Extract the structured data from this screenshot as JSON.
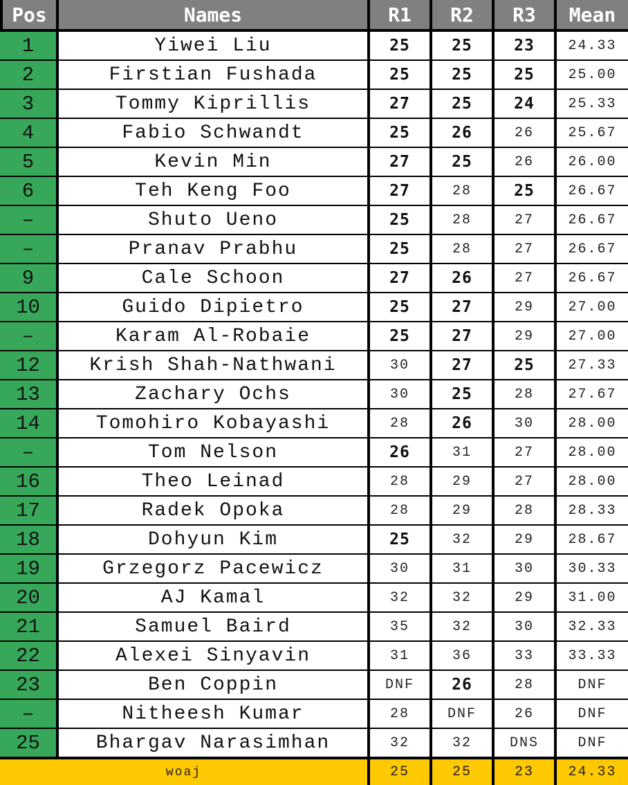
{
  "headers": {
    "pos": "Pos",
    "names": "Names",
    "r1": "R1",
    "r2": "R2",
    "r3": "R3",
    "mean": "Mean"
  },
  "tier_colors": {
    "gold": "#ffc900",
    "orange": "#e85303",
    "grey": "#b7b7b7",
    "pos_green": "#37a85a",
    "header_grey": "#808080"
  },
  "rows": [
    {
      "pos": "1",
      "name": "Yiwei Liu",
      "r1": "25",
      "r1_tier": "gold",
      "r2": "25",
      "r2_tier": "gold",
      "r3": "23",
      "r3_tier": "gold",
      "mean": "24.33",
      "mean_tier": ""
    },
    {
      "pos": "2",
      "name": "Firstian Fushada",
      "r1": "25",
      "r1_tier": "gold",
      "r2": "25",
      "r2_tier": "gold",
      "r3": "25",
      "r3_tier": "orange",
      "mean": "25.00",
      "mean_tier": ""
    },
    {
      "pos": "3",
      "name": "Tommy Kiprillis",
      "r1": "27",
      "r1_tier": "orange",
      "r2": "25",
      "r2_tier": "gold",
      "r3": "24",
      "r3_tier": "grey",
      "mean": "25.33",
      "mean_tier": ""
    },
    {
      "pos": "4",
      "name": "Fabio Schwandt",
      "r1": "25",
      "r1_tier": "gold",
      "r2": "26",
      "r2_tier": "grey",
      "r3": "26",
      "r3_tier": "",
      "mean": "25.67",
      "mean_tier": ""
    },
    {
      "pos": "5",
      "name": "Kevin Min",
      "r1": "27",
      "r1_tier": "orange",
      "r2": "25",
      "r2_tier": "gold",
      "r3": "26",
      "r3_tier": "",
      "mean": "26.00",
      "mean_tier": ""
    },
    {
      "pos": "6",
      "name": "Teh Keng Foo",
      "r1": "27",
      "r1_tier": "orange",
      "r2": "28",
      "r2_tier": "",
      "r3": "25",
      "r3_tier": "orange",
      "mean": "26.67",
      "mean_tier": ""
    },
    {
      "pos": "–",
      "name": "Shuto Ueno",
      "r1": "25",
      "r1_tier": "gold",
      "r2": "28",
      "r2_tier": "",
      "r3": "27",
      "r3_tier": "",
      "mean": "26.67",
      "mean_tier": ""
    },
    {
      "pos": "–",
      "name": "Pranav Prabhu",
      "r1": "25",
      "r1_tier": "gold",
      "r2": "28",
      "r2_tier": "",
      "r3": "27",
      "r3_tier": "",
      "mean": "26.67",
      "mean_tier": ""
    },
    {
      "pos": "9",
      "name": "Cale Schoon",
      "r1": "27",
      "r1_tier": "orange",
      "r2": "26",
      "r2_tier": "grey",
      "r3": "27",
      "r3_tier": "",
      "mean": "26.67",
      "mean_tier": ""
    },
    {
      "pos": "10",
      "name": "Guido Dipietro",
      "r1": "25",
      "r1_tier": "gold",
      "r2": "27",
      "r2_tier": "orange",
      "r3": "29",
      "r3_tier": "",
      "mean": "27.00",
      "mean_tier": ""
    },
    {
      "pos": "–",
      "name": "Karam Al-Robaie",
      "r1": "25",
      "r1_tier": "gold",
      "r2": "27",
      "r2_tier": "orange",
      "r3": "29",
      "r3_tier": "",
      "mean": "27.00",
      "mean_tier": ""
    },
    {
      "pos": "12",
      "name": "Krish Shah-Nathwani",
      "r1": "30",
      "r1_tier": "",
      "r2": "27",
      "r2_tier": "orange",
      "r3": "25",
      "r3_tier": "orange",
      "mean": "27.33",
      "mean_tier": ""
    },
    {
      "pos": "13",
      "name": "Zachary Ochs",
      "r1": "30",
      "r1_tier": "",
      "r2": "25",
      "r2_tier": "gold",
      "r3": "28",
      "r3_tier": "",
      "mean": "27.67",
      "mean_tier": ""
    },
    {
      "pos": "14",
      "name": "Tomohiro Kobayashi",
      "r1": "28",
      "r1_tier": "",
      "r2": "26",
      "r2_tier": "grey",
      "r3": "30",
      "r3_tier": "",
      "mean": "28.00",
      "mean_tier": ""
    },
    {
      "pos": "–",
      "name": "Tom Nelson",
      "r1": "26",
      "r1_tier": "grey",
      "r2": "31",
      "r2_tier": "",
      "r3": "27",
      "r3_tier": "",
      "mean": "28.00",
      "mean_tier": ""
    },
    {
      "pos": "16",
      "name": "Theo Leinad",
      "r1": "28",
      "r1_tier": "",
      "r2": "29",
      "r2_tier": "",
      "r3": "27",
      "r3_tier": "",
      "mean": "28.00",
      "mean_tier": ""
    },
    {
      "pos": "17",
      "name": "Radek Opoka",
      "r1": "28",
      "r1_tier": "",
      "r2": "29",
      "r2_tier": "",
      "r3": "28",
      "r3_tier": "",
      "mean": "28.33",
      "mean_tier": ""
    },
    {
      "pos": "18",
      "name": "Dohyun Kim",
      "r1": "25",
      "r1_tier": "gold",
      "r2": "32",
      "r2_tier": "",
      "r3": "29",
      "r3_tier": "",
      "mean": "28.67",
      "mean_tier": ""
    },
    {
      "pos": "19",
      "name": "Grzegorz Pacewicz",
      "r1": "30",
      "r1_tier": "",
      "r2": "31",
      "r2_tier": "",
      "r3": "30",
      "r3_tier": "",
      "mean": "30.33",
      "mean_tier": ""
    },
    {
      "pos": "20",
      "name": "AJ Kamal",
      "r1": "32",
      "r1_tier": "",
      "r2": "32",
      "r2_tier": "",
      "r3": "29",
      "r3_tier": "",
      "mean": "31.00",
      "mean_tier": ""
    },
    {
      "pos": "21",
      "name": "Samuel Baird",
      "r1": "35",
      "r1_tier": "",
      "r2": "32",
      "r2_tier": "",
      "r3": "30",
      "r3_tier": "",
      "mean": "32.33",
      "mean_tier": ""
    },
    {
      "pos": "22",
      "name": "Alexei Sinyavin",
      "r1": "31",
      "r1_tier": "",
      "r2": "36",
      "r2_tier": "",
      "r3": "33",
      "r3_tier": "",
      "mean": "33.33",
      "mean_tier": ""
    },
    {
      "pos": "23",
      "name": "Ben Coppin",
      "r1": "DNF",
      "r1_tier": "dnf",
      "r2": "26",
      "r2_tier": "grey",
      "r3": "28",
      "r3_tier": "",
      "mean": "DNF",
      "mean_tier": "dnf"
    },
    {
      "pos": "–",
      "name": "Nitheesh Kumar",
      "r1": "28",
      "r1_tier": "",
      "r2": "DNF",
      "r2_tier": "dnf",
      "r3": "26",
      "r3_tier": "",
      "mean": "DNF",
      "mean_tier": "dnf"
    },
    {
      "pos": "25",
      "name": "Bhargav Narasimhan",
      "r1": "32",
      "r1_tier": "",
      "r2": "32",
      "r2_tier": "",
      "r3": "DNS",
      "r3_tier": "dns",
      "mean": "DNF",
      "mean_tier": "dnf"
    }
  ],
  "footer": {
    "label": "woaj",
    "r1": "25",
    "r2": "25",
    "r3": "23",
    "mean": "24.33"
  }
}
